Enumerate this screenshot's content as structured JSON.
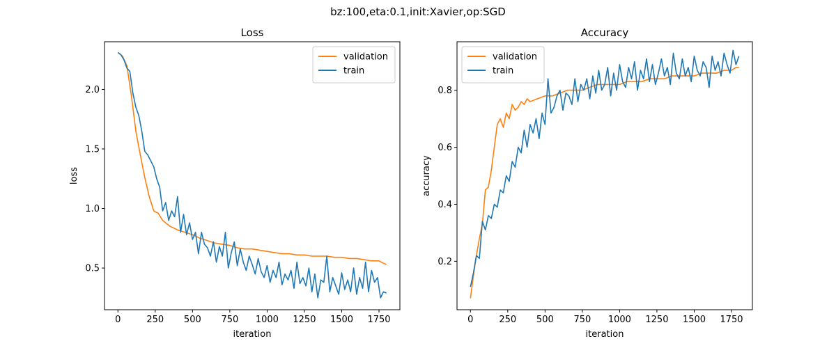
{
  "figure": {
    "suptitle": "bz:100,eta:0.1,init:Xavier,op:SGD"
  },
  "colors": {
    "validation": "#ff7f0e",
    "train": "#1f77b4",
    "axes": "#000000",
    "legend_border": "#cccccc"
  },
  "chart_data": [
    {
      "type": "line",
      "title": "Loss",
      "xlabel": "iteration",
      "ylabel": "loss",
      "xlim": [
        -90,
        1890
      ],
      "ylim": [
        0.15,
        2.4
      ],
      "xticks": [
        0,
        250,
        500,
        750,
        1000,
        1250,
        1500,
        1750
      ],
      "yticks": [
        0.5,
        1.0,
        1.5,
        2.0
      ],
      "ytick_labels": [
        "0.5",
        "1.0",
        "1.5",
        "2.0"
      ],
      "legend": "top-right",
      "grid": false,
      "series": [
        {
          "name": "validation",
          "color": "#ff7f0e",
          "x": [
            0,
            30,
            60,
            90,
            120,
            150,
            180,
            210,
            240,
            270,
            300,
            350,
            400,
            450,
            500,
            550,
            600,
            650,
            700,
            750,
            800,
            850,
            900,
            950,
            1000,
            1050,
            1100,
            1150,
            1200,
            1250,
            1300,
            1350,
            1400,
            1450,
            1500,
            1550,
            1600,
            1650,
            1700,
            1750,
            1780,
            1800
          ],
          "y": [
            2.31,
            2.28,
            2.2,
            1.95,
            1.65,
            1.45,
            1.26,
            1.1,
            0.98,
            0.96,
            0.9,
            0.85,
            0.82,
            0.8,
            0.78,
            0.75,
            0.73,
            0.71,
            0.7,
            0.69,
            0.67,
            0.66,
            0.66,
            0.65,
            0.64,
            0.63,
            0.62,
            0.62,
            0.61,
            0.61,
            0.6,
            0.6,
            0.6,
            0.59,
            0.59,
            0.58,
            0.58,
            0.57,
            0.56,
            0.56,
            0.54,
            0.53
          ]
        },
        {
          "name": "train",
          "color": "#1f77b4",
          "x": [
            0,
            20,
            40,
            60,
            80,
            100,
            120,
            140,
            160,
            180,
            200,
            220,
            240,
            260,
            280,
            300,
            320,
            340,
            360,
            380,
            400,
            420,
            440,
            460,
            480,
            500,
            520,
            540,
            560,
            580,
            600,
            620,
            640,
            660,
            680,
            700,
            720,
            740,
            760,
            780,
            800,
            820,
            840,
            860,
            880,
            900,
            920,
            940,
            960,
            980,
            1000,
            1020,
            1040,
            1060,
            1080,
            1100,
            1120,
            1140,
            1160,
            1180,
            1200,
            1220,
            1240,
            1260,
            1280,
            1300,
            1320,
            1340,
            1360,
            1380,
            1400,
            1420,
            1440,
            1460,
            1480,
            1500,
            1520,
            1540,
            1560,
            1580,
            1600,
            1620,
            1640,
            1660,
            1680,
            1700,
            1720,
            1740,
            1760,
            1780,
            1800
          ],
          "y": [
            2.31,
            2.29,
            2.25,
            2.18,
            2.15,
            1.97,
            1.85,
            1.78,
            1.65,
            1.48,
            1.45,
            1.4,
            1.35,
            1.25,
            1.18,
            0.98,
            1.05,
            0.9,
            0.98,
            0.93,
            1.1,
            0.8,
            0.95,
            0.78,
            0.88,
            0.74,
            0.8,
            0.62,
            0.8,
            0.7,
            0.67,
            0.6,
            0.72,
            0.55,
            0.68,
            0.6,
            0.8,
            0.5,
            0.63,
            0.72,
            0.52,
            0.66,
            0.55,
            0.48,
            0.6,
            0.53,
            0.45,
            0.58,
            0.47,
            0.42,
            0.52,
            0.38,
            0.48,
            0.42,
            0.55,
            0.36,
            0.45,
            0.4,
            0.48,
            0.33,
            0.55,
            0.37,
            0.42,
            0.35,
            0.5,
            0.3,
            0.45,
            0.25,
            0.4,
            0.38,
            0.6,
            0.3,
            0.42,
            0.35,
            0.28,
            0.46,
            0.32,
            0.4,
            0.3,
            0.5,
            0.28,
            0.42,
            0.33,
            0.55,
            0.3,
            0.48,
            0.38,
            0.42,
            0.25,
            0.3,
            0.29
          ]
        }
      ]
    },
    {
      "type": "line",
      "title": "Accuracy",
      "xlabel": "iteration",
      "ylabel": "accuracy",
      "xlim": [
        -90,
        1890
      ],
      "ylim": [
        0.03,
        0.97
      ],
      "xticks": [
        0,
        250,
        500,
        750,
        1000,
        1250,
        1500,
        1750
      ],
      "yticks": [
        0.2,
        0.4,
        0.6,
        0.8
      ],
      "ytick_labels": [
        "0.2",
        "0.4",
        "0.6",
        "0.8"
      ],
      "legend": "top-left",
      "grid": false,
      "series": [
        {
          "name": "validation",
          "color": "#ff7f0e",
          "x": [
            0,
            20,
            40,
            60,
            80,
            100,
            120,
            140,
            160,
            180,
            200,
            220,
            240,
            260,
            280,
            300,
            320,
            340,
            360,
            380,
            400,
            450,
            500,
            550,
            600,
            650,
            700,
            750,
            800,
            850,
            900,
            950,
            1000,
            1050,
            1100,
            1150,
            1200,
            1250,
            1300,
            1350,
            1400,
            1450,
            1500,
            1550,
            1600,
            1650,
            1700,
            1750,
            1780,
            1800
          ],
          "y": [
            0.07,
            0.15,
            0.22,
            0.28,
            0.33,
            0.45,
            0.46,
            0.52,
            0.6,
            0.68,
            0.7,
            0.67,
            0.72,
            0.7,
            0.75,
            0.73,
            0.74,
            0.76,
            0.75,
            0.77,
            0.76,
            0.77,
            0.78,
            0.78,
            0.79,
            0.8,
            0.8,
            0.8,
            0.81,
            0.82,
            0.82,
            0.82,
            0.82,
            0.83,
            0.83,
            0.83,
            0.84,
            0.84,
            0.84,
            0.85,
            0.85,
            0.85,
            0.85,
            0.86,
            0.86,
            0.86,
            0.87,
            0.87,
            0.88,
            0.88
          ]
        },
        {
          "name": "train",
          "color": "#1f77b4",
          "x": [
            0,
            20,
            40,
            60,
            80,
            100,
            120,
            140,
            160,
            180,
            200,
            220,
            240,
            260,
            280,
            300,
            320,
            340,
            360,
            380,
            400,
            420,
            440,
            460,
            480,
            500,
            520,
            540,
            560,
            580,
            600,
            620,
            640,
            660,
            680,
            700,
            720,
            740,
            760,
            780,
            800,
            820,
            840,
            860,
            880,
            900,
            920,
            940,
            960,
            980,
            1000,
            1020,
            1040,
            1060,
            1080,
            1100,
            1120,
            1140,
            1160,
            1180,
            1200,
            1220,
            1240,
            1260,
            1280,
            1300,
            1320,
            1340,
            1360,
            1380,
            1400,
            1420,
            1440,
            1460,
            1480,
            1500,
            1520,
            1540,
            1560,
            1580,
            1600,
            1620,
            1640,
            1660,
            1680,
            1700,
            1720,
            1740,
            1760,
            1780,
            1800
          ],
          "y": [
            0.11,
            0.16,
            0.22,
            0.21,
            0.34,
            0.31,
            0.36,
            0.35,
            0.4,
            0.39,
            0.45,
            0.44,
            0.5,
            0.48,
            0.55,
            0.53,
            0.6,
            0.58,
            0.66,
            0.6,
            0.68,
            0.65,
            0.7,
            0.63,
            0.72,
            0.68,
            0.84,
            0.72,
            0.74,
            0.78,
            0.8,
            0.73,
            0.79,
            0.78,
            0.75,
            0.84,
            0.76,
            0.82,
            0.8,
            0.84,
            0.77,
            0.85,
            0.79,
            0.87,
            0.8,
            0.82,
            0.88,
            0.78,
            0.86,
            0.8,
            0.89,
            0.83,
            0.81,
            0.88,
            0.84,
            0.9,
            0.8,
            0.87,
            0.84,
            0.91,
            0.83,
            0.89,
            0.82,
            0.86,
            0.91,
            0.85,
            0.88,
            0.82,
            0.93,
            0.86,
            0.84,
            0.91,
            0.85,
            0.88,
            0.83,
            0.92,
            0.87,
            0.85,
            0.9,
            0.88,
            0.81,
            0.92,
            0.87,
            0.9,
            0.85,
            0.93,
            0.89,
            0.86,
            0.94,
            0.89,
            0.92
          ]
        }
      ]
    }
  ]
}
